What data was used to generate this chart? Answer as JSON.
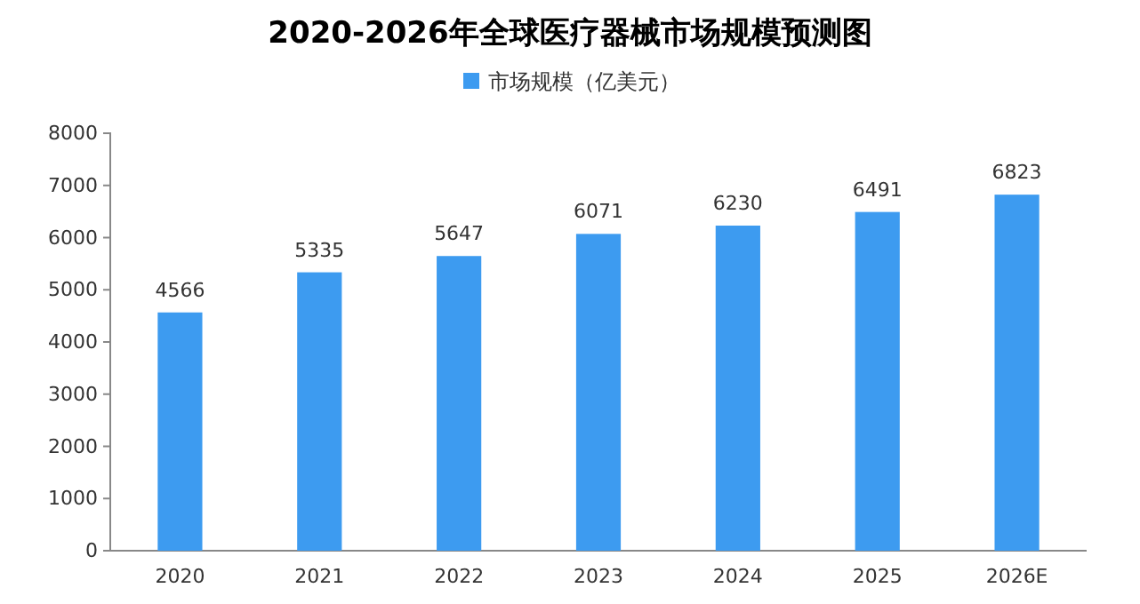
{
  "chart_data": {
    "type": "bar",
    "title": "2020-2026年全球医疗器械市场规模预测图",
    "categories": [
      "2020",
      "2021",
      "2022",
      "2023",
      "2024",
      "2025",
      "2026E"
    ],
    "series": [
      {
        "name": "市场规模（亿美元）",
        "color": "#3d9bf0",
        "values": [
          4566,
          5335,
          5647,
          6071,
          6230,
          6491,
          6823
        ]
      }
    ],
    "ylim": [
      0,
      8000
    ],
    "yticks": [
      0,
      1000,
      2000,
      3000,
      4000,
      5000,
      6000,
      7000,
      8000
    ],
    "data_labels": true,
    "legend": "top",
    "grid": false
  }
}
